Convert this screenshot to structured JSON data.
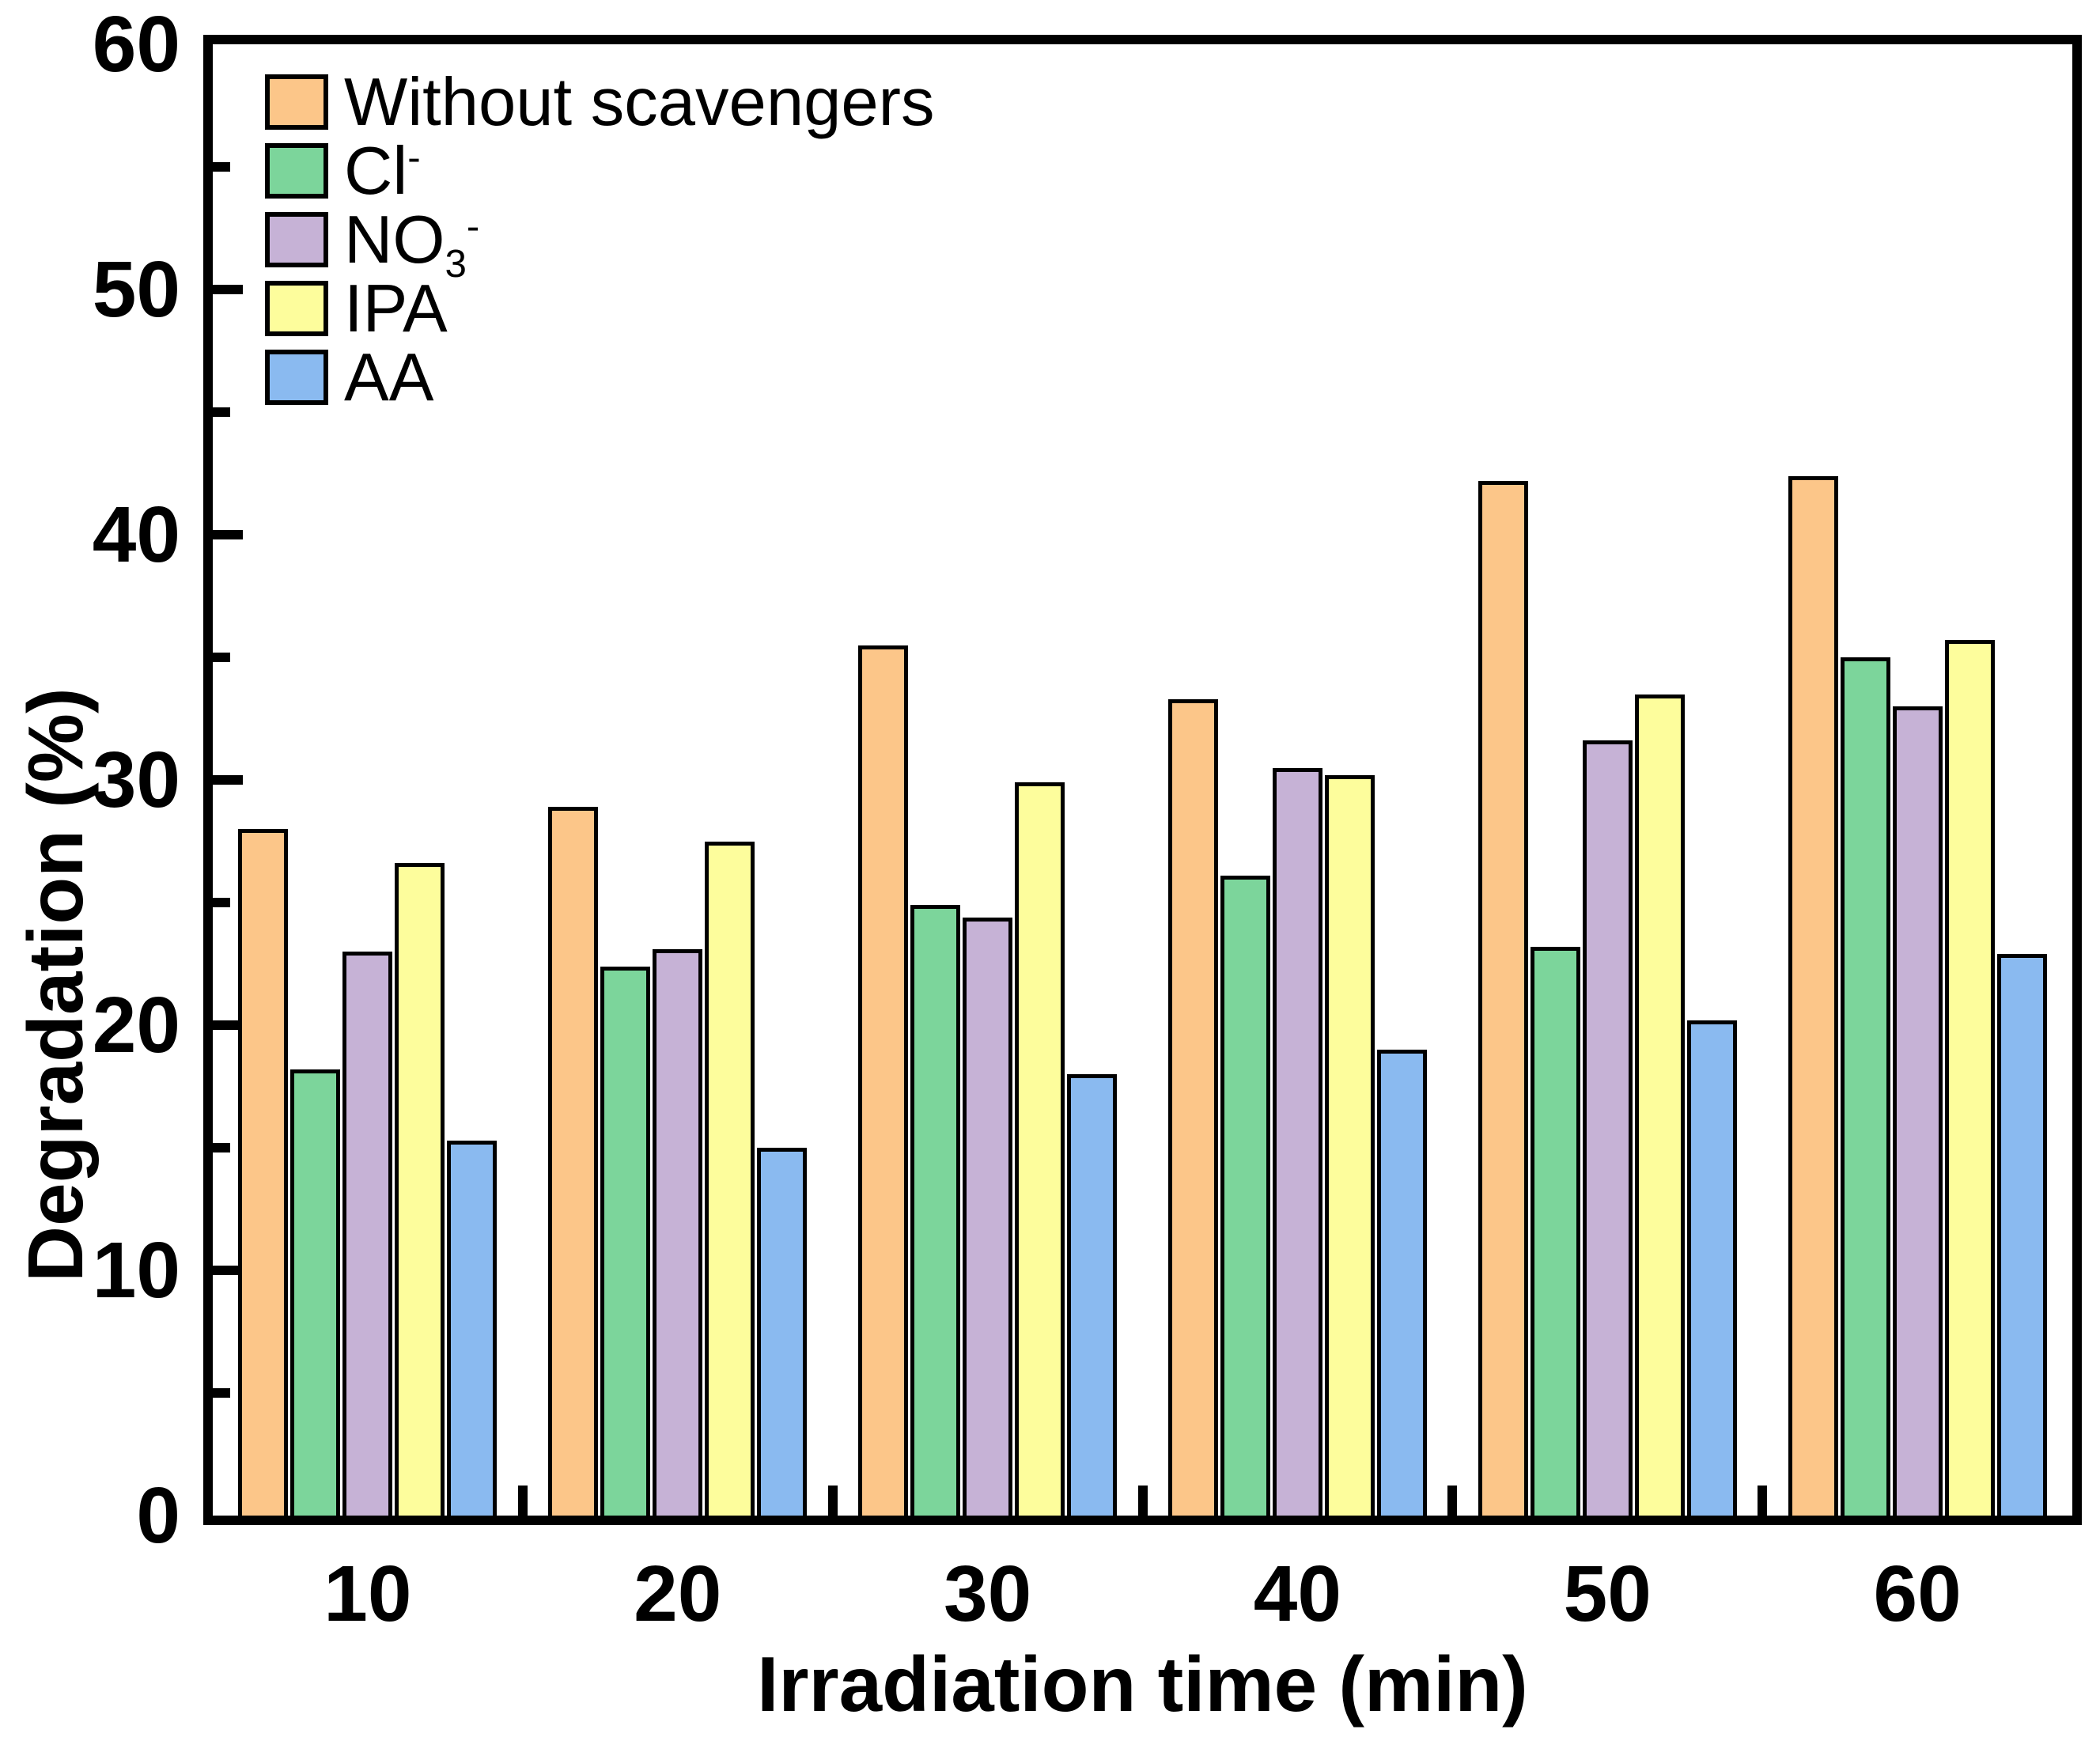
{
  "figure": {
    "background": "#FFFFFF",
    "frame_color": "#000000"
  },
  "legend": {
    "items": [
      {
        "label": "Without scavengers",
        "sub": "",
        "sup": ""
      },
      {
        "label": "Cl",
        "sub": "",
        "sup": "-"
      },
      {
        "label": "NO",
        "sub": "3",
        "sup": "-"
      },
      {
        "label": "IPA",
        "sub": "",
        "sup": ""
      },
      {
        "label": "AA",
        "sub": "",
        "sup": ""
      }
    ]
  },
  "chart_data": {
    "type": "bar",
    "title": "",
    "xlabel": "Irradiation time (min)",
    "ylabel": "Degradation (%)",
    "categories": [
      "10",
      "20",
      "30",
      "40",
      "50",
      "60"
    ],
    "y_tick_labels": [
      "0",
      "10",
      "20",
      "30",
      "40",
      "50",
      "60"
    ],
    "ylim": [
      0,
      60
    ],
    "y_major_tick": 10,
    "y_minor_tick": 5,
    "grid": false,
    "legend_position": "top-left-inside",
    "bar_edge_color": "#000000",
    "series": [
      {
        "name": "Without scavengers",
        "color": "#FCC689",
        "values": [
          28.0,
          28.9,
          35.5,
          33.3,
          42.2,
          42.4
        ]
      },
      {
        "name": "Cl-",
        "color": "#7CD59B",
        "values": [
          18.2,
          22.4,
          24.9,
          26.1,
          23.2,
          35.0
        ]
      },
      {
        "name": "NO3-",
        "color": "#C6B2D6",
        "values": [
          23.0,
          23.1,
          24.4,
          30.5,
          31.6,
          33.0
        ]
      },
      {
        "name": "IPA",
        "color": "#FDFD9C",
        "values": [
          26.6,
          27.5,
          29.9,
          30.2,
          33.5,
          35.7
        ]
      },
      {
        "name": "AA",
        "color": "#8ABAF0",
        "values": [
          15.3,
          15.0,
          18.0,
          19.0,
          20.2,
          22.9
        ]
      }
    ]
  }
}
